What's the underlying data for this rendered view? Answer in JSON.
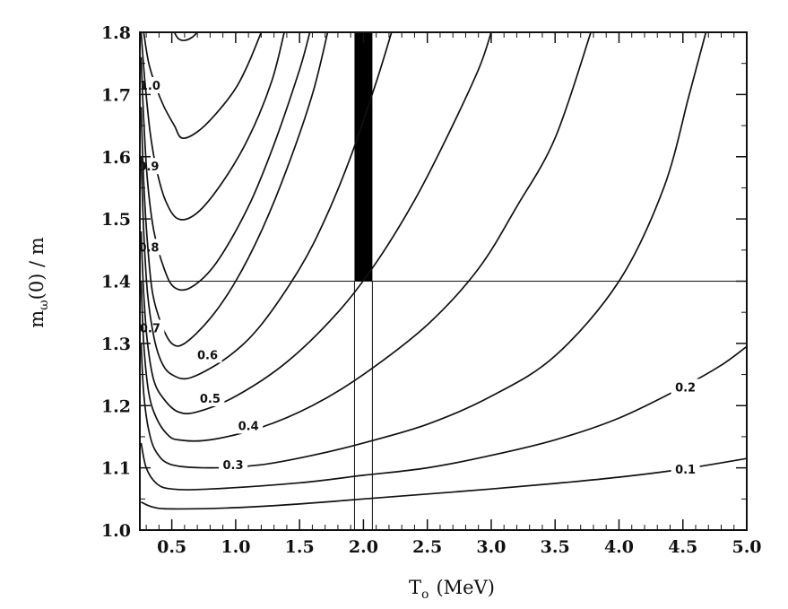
{
  "chart_data": {
    "type": "line",
    "subtype": "contour",
    "title": "",
    "xlabel": "T",
    "xlabel_sub": "o",
    "xlabel_unit": "(MeV)",
    "ylabel": "m",
    "ylabel_sub": "ω",
    "ylabel_tail": "(0) / m",
    "xlim": [
      0.25,
      5.0
    ],
    "ylim": [
      1.0,
      1.8
    ],
    "x_ticks": [
      "0.5",
      "1.0",
      "1.5",
      "2.0",
      "2.5",
      "3.0",
      "3.5",
      "4.0",
      "4.5",
      "5.0"
    ],
    "y_ticks": [
      "1.0",
      "1.1",
      "1.2",
      "1.3",
      "1.4",
      "1.5",
      "1.6",
      "1.7",
      "1.8"
    ],
    "grid": false,
    "reference_lines": {
      "horizontal_y": 1.4,
      "vertical_x": [
        1.93,
        2.07
      ]
    },
    "shaded_region": {
      "x": [
        1.93,
        2.07
      ],
      "y": [
        1.4,
        1.8
      ],
      "color": "#000000"
    },
    "series": [
      {
        "label": "1.0",
        "points": [
          [
            0.28,
            1.8
          ],
          [
            0.32,
            1.75
          ],
          [
            0.38,
            1.71
          ],
          [
            0.44,
            1.68
          ],
          [
            0.52,
            1.65
          ],
          [
            0.58,
            1.63
          ],
          [
            0.7,
            1.64
          ],
          [
            0.85,
            1.67
          ],
          [
            1.0,
            1.71
          ],
          [
            1.1,
            1.75
          ],
          [
            1.2,
            1.8
          ]
        ],
        "label_at": [
          0.33,
          1.715
        ]
      },
      {
        "label": "0.9",
        "points": [
          [
            0.26,
            1.8
          ],
          [
            0.29,
            1.72
          ],
          [
            0.33,
            1.64
          ],
          [
            0.38,
            1.58
          ],
          [
            0.45,
            1.53
          ],
          [
            0.55,
            1.5
          ],
          [
            0.7,
            1.51
          ],
          [
            0.9,
            1.56
          ],
          [
            1.1,
            1.63
          ],
          [
            1.28,
            1.72
          ],
          [
            1.38,
            1.8
          ]
        ],
        "label_at": [
          0.32,
          1.585
        ]
      },
      {
        "label": "0.8",
        "points": [
          [
            0.26,
            1.76
          ],
          [
            0.28,
            1.66
          ],
          [
            0.31,
            1.56
          ],
          [
            0.36,
            1.48
          ],
          [
            0.44,
            1.42
          ],
          [
            0.52,
            1.39
          ],
          [
            0.65,
            1.39
          ],
          [
            0.85,
            1.43
          ],
          [
            1.1,
            1.52
          ],
          [
            1.3,
            1.62
          ],
          [
            1.5,
            1.74
          ],
          [
            1.58,
            1.8
          ]
        ],
        "label_at": [
          0.32,
          1.455
        ]
      },
      {
        "label": "0.7",
        "points": [
          [
            0.26,
            1.68
          ],
          [
            0.28,
            1.56
          ],
          [
            0.31,
            1.46
          ],
          [
            0.35,
            1.38
          ],
          [
            0.42,
            1.33
          ],
          [
            0.5,
            1.3
          ],
          [
            0.6,
            1.3
          ],
          [
            0.8,
            1.34
          ],
          [
            1.0,
            1.4
          ],
          [
            1.2,
            1.48
          ],
          [
            1.4,
            1.58
          ],
          [
            1.6,
            1.7
          ],
          [
            1.72,
            1.8
          ]
        ],
        "label_at": [
          0.33,
          1.325
        ]
      },
      {
        "label": "0.6",
        "points": [
          [
            0.26,
            1.6
          ],
          [
            0.28,
            1.48
          ],
          [
            0.31,
            1.38
          ],
          [
            0.36,
            1.31
          ],
          [
            0.42,
            1.27
          ],
          [
            0.5,
            1.25
          ],
          [
            0.65,
            1.245
          ],
          [
            0.95,
            1.28
          ],
          [
            1.2,
            1.33
          ],
          [
            1.5,
            1.42
          ],
          [
            1.7,
            1.5
          ],
          [
            1.9,
            1.6
          ],
          [
            2.1,
            1.72
          ],
          [
            2.22,
            1.8
          ]
        ],
        "label_at": [
          0.78,
          1.282
        ]
      },
      {
        "label": "0.5",
        "points": [
          [
            0.26,
            1.48
          ],
          [
            0.28,
            1.38
          ],
          [
            0.31,
            1.3
          ],
          [
            0.36,
            1.24
          ],
          [
            0.44,
            1.21
          ],
          [
            0.55,
            1.19
          ],
          [
            0.7,
            1.19
          ],
          [
            1.0,
            1.215
          ],
          [
            1.4,
            1.27
          ],
          [
            1.8,
            1.35
          ],
          [
            2.1,
            1.43
          ],
          [
            2.4,
            1.53
          ],
          [
            2.65,
            1.63
          ],
          [
            2.9,
            1.74
          ],
          [
            3.0,
            1.8
          ]
        ],
        "label_at": [
          0.8,
          1.212
        ]
      },
      {
        "label": "0.4",
        "points": [
          [
            0.26,
            1.4
          ],
          [
            0.28,
            1.3
          ],
          [
            0.32,
            1.22
          ],
          [
            0.38,
            1.18
          ],
          [
            0.46,
            1.155
          ],
          [
            0.55,
            1.145
          ],
          [
            0.8,
            1.145
          ],
          [
            1.2,
            1.165
          ],
          [
            1.6,
            1.2
          ],
          [
            2.0,
            1.25
          ],
          [
            2.5,
            1.33
          ],
          [
            2.9,
            1.42
          ],
          [
            3.2,
            1.52
          ],
          [
            3.5,
            1.63
          ],
          [
            3.78,
            1.8
          ]
        ],
        "label_at": [
          1.1,
          1.168
        ]
      },
      {
        "label": "0.3",
        "points": [
          [
            0.26,
            1.3
          ],
          [
            0.28,
            1.22
          ],
          [
            0.32,
            1.16
          ],
          [
            0.38,
            1.125
          ],
          [
            0.5,
            1.105
          ],
          [
            0.8,
            1.1
          ],
          [
            1.2,
            1.105
          ],
          [
            1.6,
            1.12
          ],
          [
            2.0,
            1.14
          ],
          [
            2.5,
            1.17
          ],
          [
            3.0,
            1.215
          ],
          [
            3.5,
            1.28
          ],
          [
            4.0,
            1.4
          ],
          [
            4.35,
            1.55
          ],
          [
            4.55,
            1.7
          ],
          [
            4.68,
            1.8
          ]
        ],
        "label_at": [
          0.98,
          1.105
        ]
      },
      {
        "label": "0.2",
        "points": [
          [
            0.26,
            1.14
          ],
          [
            0.3,
            1.1
          ],
          [
            0.38,
            1.075
          ],
          [
            0.5,
            1.066
          ],
          [
            0.8,
            1.066
          ],
          [
            1.5,
            1.076
          ],
          [
            2.0,
            1.088
          ],
          [
            2.5,
            1.1
          ],
          [
            3.0,
            1.12
          ],
          [
            3.5,
            1.145
          ],
          [
            4.0,
            1.18
          ],
          [
            4.5,
            1.23
          ],
          [
            4.8,
            1.265
          ],
          [
            5.0,
            1.295
          ]
        ],
        "label_at": [
          4.52,
          1.23
        ]
      },
      {
        "label": "0.1",
        "points": [
          [
            0.26,
            1.045
          ],
          [
            0.35,
            1.037
          ],
          [
            0.5,
            1.034
          ],
          [
            1.0,
            1.036
          ],
          [
            1.5,
            1.042
          ],
          [
            2.0,
            1.05
          ],
          [
            2.5,
            1.058
          ],
          [
            3.0,
            1.066
          ],
          [
            3.5,
            1.075
          ],
          [
            4.0,
            1.085
          ],
          [
            4.5,
            1.098
          ],
          [
            5.0,
            1.115
          ]
        ],
        "label_at": [
          4.52,
          1.098
        ]
      },
      {
        "label": "",
        "points": [
          [
            0.52,
            1.8
          ],
          [
            0.55,
            1.79
          ],
          [
            0.6,
            1.787
          ],
          [
            0.66,
            1.792
          ],
          [
            0.7,
            1.8
          ]
        ]
      }
    ]
  }
}
